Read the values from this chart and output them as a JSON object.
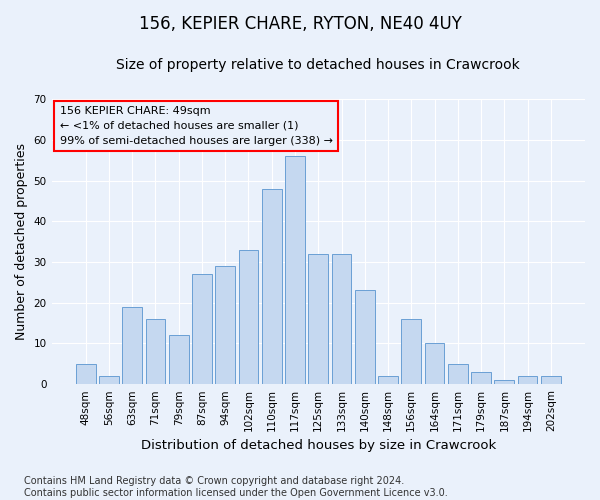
{
  "title": "156, KEPIER CHARE, RYTON, NE40 4UY",
  "subtitle": "Size of property relative to detached houses in Crawcrook",
  "xlabel": "Distribution of detached houses by size in Crawcrook",
  "ylabel": "Number of detached properties",
  "categories": [
    "48sqm",
    "56sqm",
    "63sqm",
    "71sqm",
    "79sqm",
    "87sqm",
    "94sqm",
    "102sqm",
    "110sqm",
    "117sqm",
    "125sqm",
    "133sqm",
    "140sqm",
    "148sqm",
    "156sqm",
    "164sqm",
    "171sqm",
    "179sqm",
    "187sqm",
    "194sqm",
    "202sqm"
  ],
  "values": [
    5,
    2,
    19,
    16,
    12,
    27,
    29,
    33,
    48,
    56,
    32,
    32,
    23,
    2,
    16,
    10,
    5,
    3,
    1,
    2,
    2
  ],
  "bar_color": "#c5d8f0",
  "bar_edge_color": "#6a9fd4",
  "ylim": [
    0,
    70
  ],
  "yticks": [
    0,
    10,
    20,
    30,
    40,
    50,
    60,
    70
  ],
  "annotation_box_text": "156 KEPIER CHARE: 49sqm\n← <1% of detached houses are smaller (1)\n99% of semi-detached houses are larger (338) →",
  "footer_text": "Contains HM Land Registry data © Crown copyright and database right 2024.\nContains public sector information licensed under the Open Government Licence v3.0.",
  "background_color": "#eaf1fb",
  "grid_color": "#ffffff",
  "title_fontsize": 12,
  "subtitle_fontsize": 10,
  "ylabel_fontsize": 9,
  "xlabel_fontsize": 9.5,
  "tick_fontsize": 7.5,
  "annotation_fontsize": 8,
  "footer_fontsize": 7
}
